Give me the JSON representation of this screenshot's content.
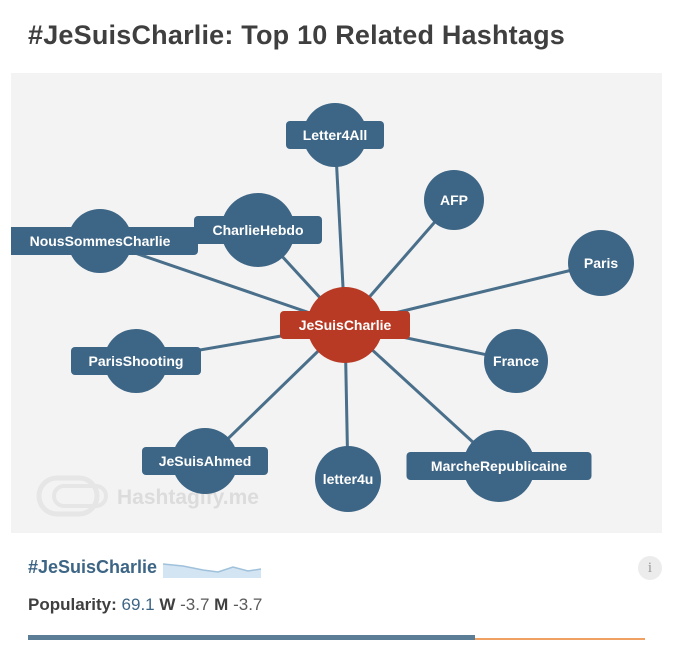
{
  "title": "#JeSuisCharlie: Top 10 Related Hashtags",
  "graph": {
    "center": {
      "label": "JeSuisCharlie",
      "color": "#b83a24"
    },
    "node_color": "#3d6585",
    "nodes": [
      {
        "label": "Letter4All"
      },
      {
        "label": "AFP"
      },
      {
        "label": "Paris"
      },
      {
        "label": "France"
      },
      {
        "label": "MarcheRepublicaine"
      },
      {
        "label": "letter4u"
      },
      {
        "label": "JeSuisAhmed"
      },
      {
        "label": "ParisShooting"
      },
      {
        "label": "NousSommesCharlie"
      },
      {
        "label": "CharlieHebdo"
      }
    ],
    "watermark": "Hashtagify.me"
  },
  "footer": {
    "hashtag": "#JeSuisCharlie",
    "popularity_label": "Popularity:",
    "popularity_value": "69.1",
    "week_label": "W",
    "week_value": "-3.7",
    "month_label": "M",
    "month_value": "-3.7",
    "popularity_fraction": 0.724,
    "info_symbol": "i"
  }
}
